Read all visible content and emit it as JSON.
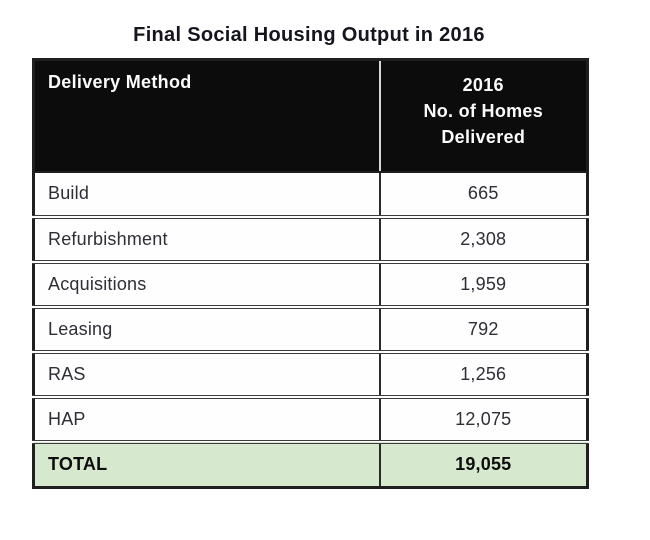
{
  "title": "Final Social Housing Output in 2016",
  "table": {
    "header": {
      "method_label": "Delivery Method",
      "value_lines": [
        "2016",
        "No. of Homes",
        "Delivered"
      ]
    },
    "rows": [
      {
        "method": "Build",
        "value": "665"
      },
      {
        "method": "Refurbishment",
        "value": "2,308"
      },
      {
        "method": "Acquisitions",
        "value": "1,959"
      },
      {
        "method": "Leasing",
        "value": "792"
      },
      {
        "method": "RAS",
        "value": "1,256"
      },
      {
        "method": "HAP",
        "value": "12,075"
      }
    ],
    "total": {
      "label": "TOTAL",
      "value": "19,055"
    }
  },
  "colors": {
    "header_bg": "#0c0c0c",
    "header_text": "#fbfbfb",
    "header_divider": "#d6d6d6",
    "body_text": "#2e2e36",
    "border_dark": "#1f1f1f",
    "row_separator": "#3c3c3c",
    "total_bg": "#d6e8ce",
    "title_text": "#15151e",
    "page_bg": "#ffffff"
  },
  "chart_data": {
    "type": "table",
    "title": "Final Social Housing Output in 2016",
    "columns": [
      "Delivery Method",
      "2016 No. of Homes Delivered"
    ],
    "categories": [
      "Build",
      "Refurbishment",
      "Acquisitions",
      "Leasing",
      "RAS",
      "HAP"
    ],
    "values": [
      665,
      2308,
      1959,
      792,
      1256,
      12075
    ],
    "total": {
      "label": "TOTAL",
      "value": 19055
    }
  }
}
